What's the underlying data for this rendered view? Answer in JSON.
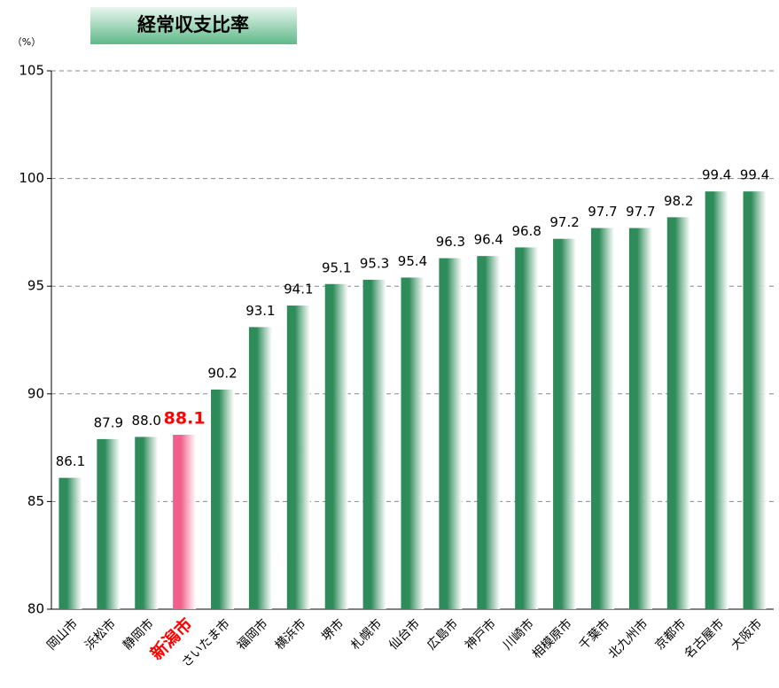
{
  "chart_data": {
    "type": "bar",
    "title": "経常収支比率",
    "unit_label": "（%）",
    "categories": [
      "岡山市",
      "浜松市",
      "静岡市",
      "新潟市",
      "さいたま市",
      "福岡市",
      "横浜市",
      "堺市",
      "札幌市",
      "仙台市",
      "広島市",
      "神戸市",
      "川崎市",
      "相模原市",
      "千葉市",
      "北九州市",
      "京都市",
      "名古屋市",
      "大阪市"
    ],
    "values": [
      86.1,
      87.9,
      88.0,
      88.1,
      90.2,
      93.1,
      94.1,
      95.1,
      95.3,
      95.4,
      96.3,
      96.4,
      96.8,
      97.2,
      97.7,
      97.7,
      98.2,
      99.4,
      99.4
    ],
    "value_labels": [
      "86.1",
      "87.9",
      "88.0",
      "88.1",
      "90.2",
      "93.1",
      "94.1",
      "95.1",
      "95.3",
      "95.4",
      "96.3",
      "96.4",
      "96.8",
      "97.2",
      "97.7",
      "97.7",
      "98.2",
      "99.4",
      "99.4"
    ],
    "colors": [
      "#2e8b5a",
      "#2e8b5a",
      "#2e8b5a",
      "#f0608a",
      "#2e8b5a",
      "#2e8b5a",
      "#2e8b5a",
      "#2e8b5a",
      "#2e8b5a",
      "#2e8b5a",
      "#2e8b5a",
      "#2e8b5a",
      "#2e8b5a",
      "#2e8b5a",
      "#2e8b5a",
      "#2e8b5a",
      "#2e8b5a",
      "#2e8b5a",
      "#2e8b5a"
    ],
    "label_colors": [
      "#000000",
      "#000000",
      "#000000",
      "#ff0000",
      "#000000",
      "#000000",
      "#000000",
      "#000000",
      "#000000",
      "#000000",
      "#000000",
      "#000000",
      "#000000",
      "#000000",
      "#000000",
      "#000000",
      "#000000",
      "#000000",
      "#000000"
    ],
    "ylim": [
      80,
      105
    ],
    "yticks": [
      80,
      85,
      90,
      95,
      100,
      105
    ],
    "grid": true
  }
}
